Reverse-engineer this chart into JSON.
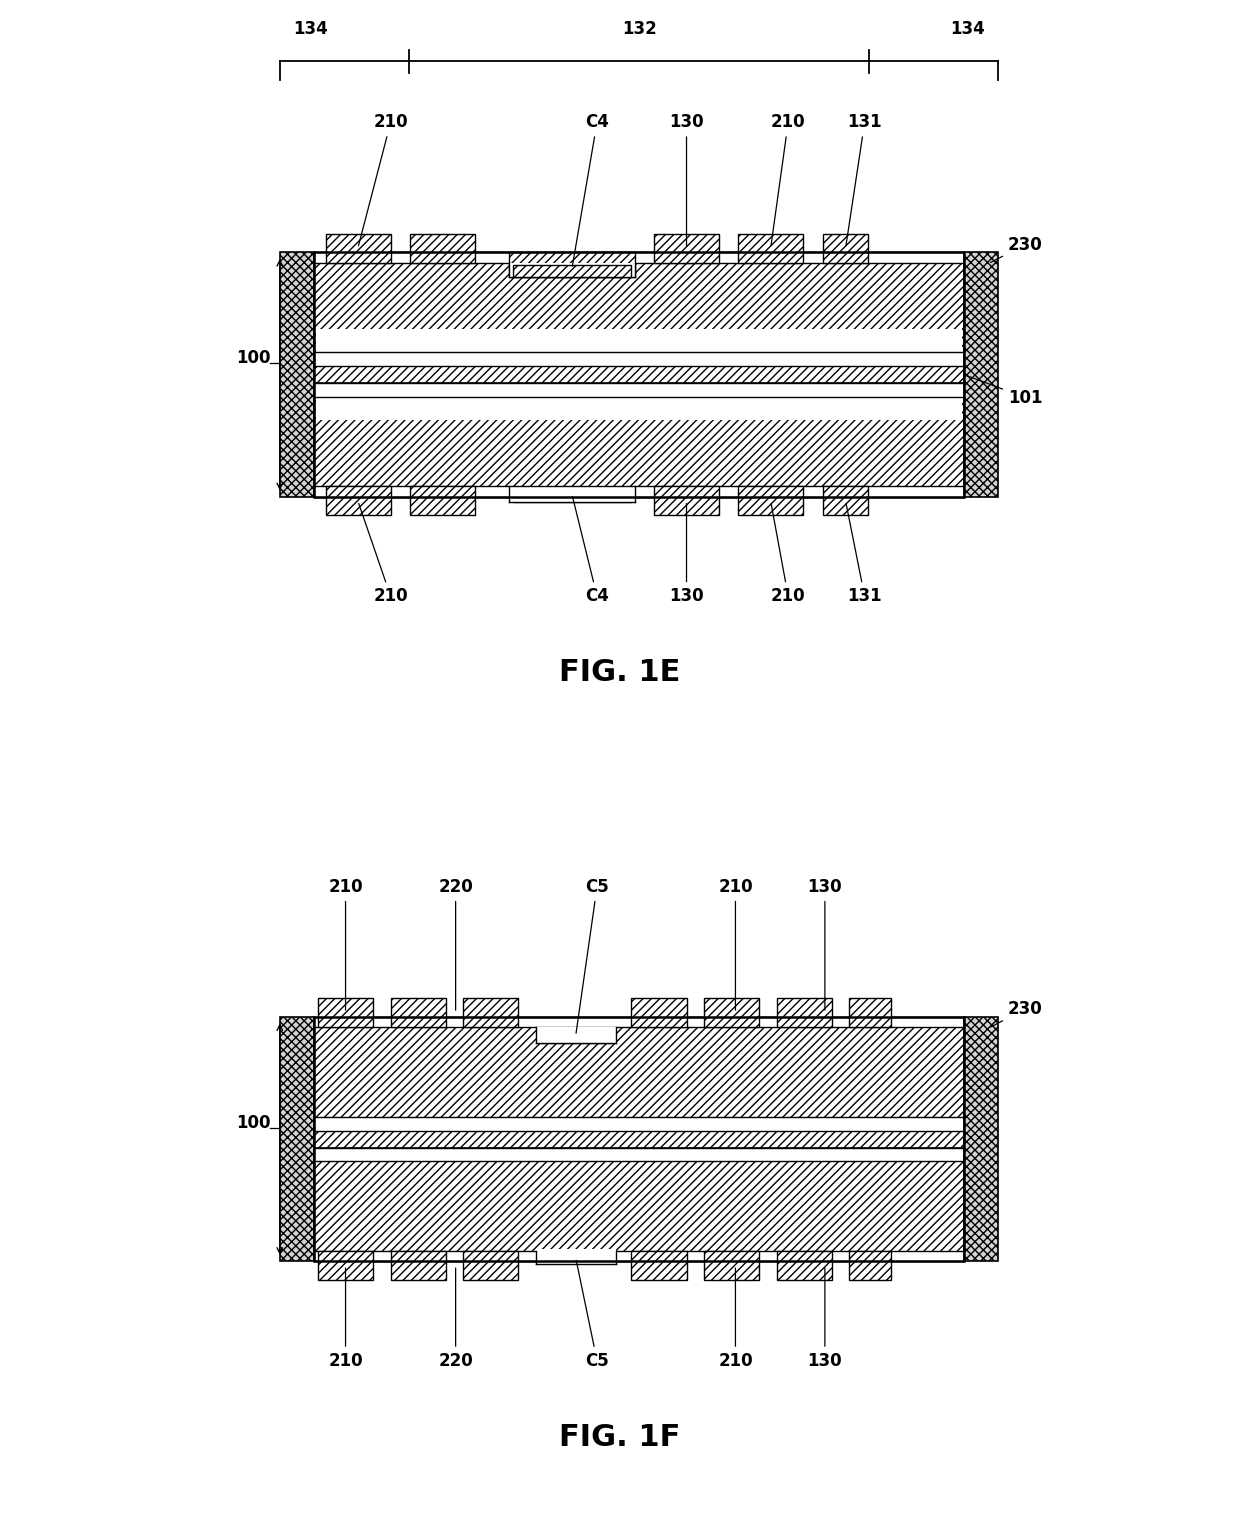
{
  "bg_color": "#ffffff",
  "line_color": "#000000",
  "fig1e": {
    "title": "FIG. 1E",
    "dim_labels": [
      "134",
      "132",
      "134"
    ],
    "top_labels": [
      "210",
      "C4",
      "130",
      "210",
      "131"
    ],
    "bot_labels": [
      "210",
      "C4",
      "130",
      "210",
      "131"
    ],
    "right_labels": [
      "230",
      "101"
    ],
    "left_label": "100"
  },
  "fig1f": {
    "title": "FIG. 1F",
    "top_labels": [
      "210",
      "220",
      "C5",
      "210",
      "130"
    ],
    "bot_labels": [
      "210",
      "220",
      "C5",
      "210",
      "130"
    ],
    "right_labels": [
      "230"
    ],
    "left_label": "100"
  }
}
